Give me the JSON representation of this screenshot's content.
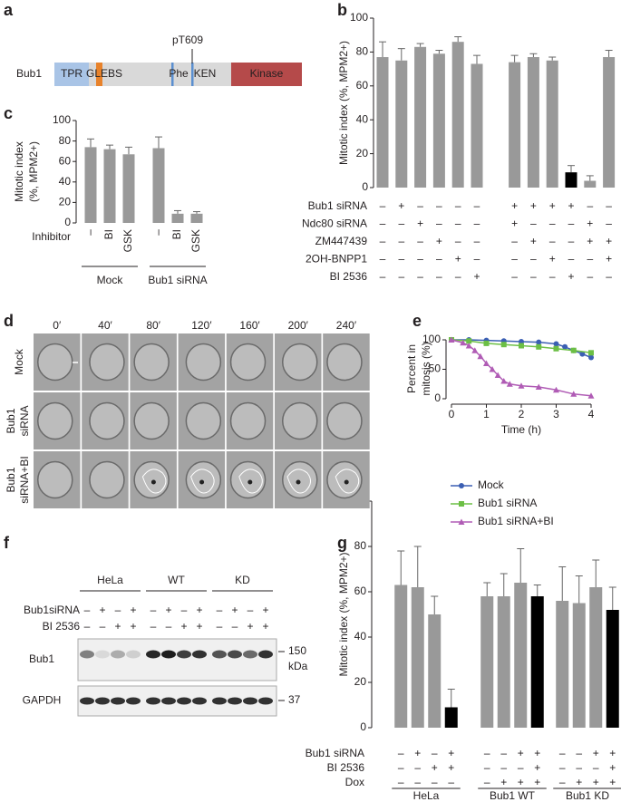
{
  "panel_labels": [
    "a",
    "b",
    "c",
    "d",
    "e",
    "f",
    "g"
  ],
  "domain_diagram": {
    "protein": "Bub1",
    "site": "pT609",
    "regions": [
      "TPR",
      "GLEBS",
      "Phe",
      "KEN",
      "Kinase"
    ]
  },
  "chart_data": [
    {
      "type": "bar",
      "y_label": "Mitotic index (%, MPM2+)",
      "values": [
        77,
        75,
        83,
        79,
        86,
        73,
        74,
        77,
        75,
        9,
        4,
        77
      ],
      "errors": [
        9,
        7,
        2,
        2,
        3,
        5,
        4,
        2,
        2,
        4,
        3,
        4
      ],
      "colors": [
        "#999999",
        "#999999",
        "#999999",
        "#999999",
        "#999999",
        "#999999",
        "#999999",
        "#999999",
        "#999999",
        "#000000",
        "#999999",
        "#999999"
      ],
      "ylim": [
        0,
        100
      ],
      "yticks": [
        0,
        20,
        40,
        60,
        80,
        100
      ],
      "conditions": [
        {
          "label": "Bub1 siRNA",
          "signs": [
            "–",
            "+",
            "–",
            "–",
            "–",
            "–",
            "+",
            "+",
            "+",
            "+",
            "–",
            "–"
          ]
        },
        {
          "label": "Ndc80 siRNA",
          "signs": [
            "–",
            "–",
            "+",
            "–",
            "–",
            "–",
            "+",
            "–",
            "–",
            "–",
            "+",
            "–"
          ]
        },
        {
          "label": "ZM447439",
          "signs": [
            "–",
            "–",
            "–",
            "+",
            "–",
            "–",
            "–",
            "+",
            "–",
            "–",
            "+",
            "+"
          ]
        },
        {
          "label": "2OH-BNPP1",
          "signs": [
            "–",
            "–",
            "–",
            "–",
            "+",
            "–",
            "–",
            "–",
            "+",
            "–",
            "–",
            "+"
          ]
        },
        {
          "label": "BI 2536",
          "signs": [
            "–",
            "–",
            "–",
            "–",
            "–",
            "+",
            "–",
            "–",
            "–",
            "+",
            "–",
            "–"
          ]
        }
      ]
    },
    {
      "type": "bar",
      "y_label": [
        "Mitotic index",
        "(%, MPM2+)"
      ],
      "categories": [
        "–",
        "BI",
        "GSK",
        "–",
        "BI",
        "GSK"
      ],
      "x_label": "Inhibitor",
      "groups": [
        "Mock",
        "Bub1 siRNA"
      ],
      "values": [
        74,
        72,
        67,
        73,
        9,
        9
      ],
      "errors": [
        8,
        4,
        7,
        11,
        3,
        2
      ],
      "colors": [
        "#999999",
        "#999999",
        "#999999",
        "#999999",
        "#999999",
        "#999999"
      ],
      "ylim": [
        0,
        100
      ],
      "yticks": [
        0,
        20,
        40,
        60,
        80,
        100
      ]
    },
    {
      "type": "line",
      "y_label": [
        "Percent in",
        "mitosis (%)"
      ],
      "x_label": "Time (h)",
      "xlim": [
        0,
        4
      ],
      "xticks": [
        0,
        1,
        2,
        3,
        4
      ],
      "ylim": [
        0,
        100
      ],
      "yticks": [
        0,
        50,
        100
      ],
      "legend": "below",
      "series": [
        {
          "name": "Mock",
          "color": "#3b5fb3",
          "marker": "circle",
          "x": [
            0,
            0.5,
            1,
            1.5,
            2,
            2.5,
            3,
            3.25,
            3.5,
            3.75,
            4
          ],
          "values": [
            100,
            100,
            99,
            98,
            97,
            96,
            93,
            88,
            82,
            76,
            70
          ]
        },
        {
          "name": "Bub1 siRNA",
          "color": "#6cbf45",
          "marker": "square",
          "x": [
            0,
            0.5,
            1,
            1.5,
            2,
            2.5,
            3,
            3.5,
            4
          ],
          "values": [
            100,
            98,
            94,
            92,
            90,
            88,
            85,
            82,
            78
          ]
        },
        {
          "name": "Bub1 siRNA+BI",
          "color": "#b05cb5",
          "marker": "triangle",
          "x": [
            0,
            0.33,
            0.5,
            0.67,
            0.83,
            1,
            1.17,
            1.33,
            1.5,
            1.67,
            2,
            2.5,
            3,
            3.5,
            4
          ],
          "values": [
            100,
            95,
            90,
            82,
            72,
            60,
            50,
            40,
            30,
            25,
            22,
            20,
            15,
            8,
            5
          ]
        }
      ]
    },
    {
      "type": "bar",
      "y_label": "Mitotic index (%, MPM2+)",
      "values": [
        63,
        62,
        50,
        9,
        58,
        58,
        64,
        58,
        56,
        55,
        62,
        52
      ],
      "errors": [
        15,
        18,
        8,
        8,
        6,
        10,
        15,
        5,
        15,
        12,
        12,
        10
      ],
      "colors": [
        "#999999",
        "#999999",
        "#999999",
        "#000000",
        "#999999",
        "#999999",
        "#999999",
        "#000000",
        "#999999",
        "#999999",
        "#999999",
        "#000000"
      ],
      "ylim": [
        0,
        100
      ],
      "yticks": [
        0,
        20,
        40,
        60,
        80,
        100
      ],
      "groups": [
        "HeLa",
        "Bub1 WT",
        "Bub1 KD"
      ],
      "conditions": [
        {
          "label": "Bub1 siRNA",
          "signs": [
            "–",
            "+",
            "–",
            "+",
            "–",
            "–",
            "+",
            "+",
            "–",
            "–",
            "+",
            "+"
          ]
        },
        {
          "label": "BI 2536",
          "signs": [
            "–",
            "–",
            "+",
            "+",
            "–",
            "–",
            "–",
            "+",
            "–",
            "–",
            "–",
            "+"
          ]
        },
        {
          "label": "Dox",
          "signs": [
            "–",
            "–",
            "–",
            "–",
            "–",
            "+",
            "+",
            "+",
            "–",
            "+",
            "+",
            "+"
          ]
        }
      ]
    }
  ],
  "microscopy": {
    "times": [
      "0′",
      "40′",
      "80′",
      "120′",
      "160′",
      "200′",
      "240′"
    ],
    "rows": [
      [
        "Mock"
      ],
      [
        "Bub1",
        "siRNA"
      ],
      [
        "Bub1",
        "siRNA+BI"
      ]
    ]
  },
  "western": {
    "groups": [
      "HeLa",
      "WT",
      "KD"
    ],
    "conditions": [
      {
        "label": "Bub1siRNA",
        "signs": [
          "–",
          "+",
          "–",
          "+",
          "–",
          "+",
          "–",
          "+",
          "–",
          "+",
          "–",
          "+"
        ]
      },
      {
        "label": "BI 2536",
        "signs": [
          "–",
          "–",
          "+",
          "+",
          "–",
          "–",
          "+",
          "+",
          "–",
          "–",
          "+",
          "+"
        ]
      }
    ],
    "blots": [
      "Bub1",
      "GAPDH"
    ],
    "markers": [
      "150",
      "kDa",
      "37"
    ]
  }
}
